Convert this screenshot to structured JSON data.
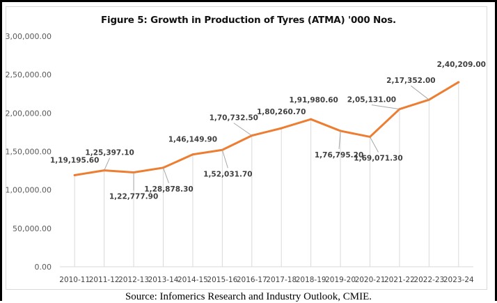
{
  "chart_data": {
    "type": "line",
    "title": "Figure 5: Growth in Production of Tyres (ATMA) '000 Nos.",
    "xlabel": "",
    "ylabel": "",
    "categories": [
      "2010-11",
      "2011-12",
      "2012-13",
      "2013-14",
      "2014-15",
      "2015-16",
      "2016-17",
      "2017-18",
      "2018-19",
      "2019-20",
      "2020-21",
      "2021-22",
      "2022-23",
      "2023-24"
    ],
    "series": [
      {
        "name": "Production of Tyres ('000 Nos.)",
        "color": "#ED7D31",
        "values": [
          119195.6,
          125397.1,
          122777.9,
          128878.3,
          146149.9,
          152031.7,
          170732.5,
          180260.7,
          191980.6,
          176795.2,
          169071.3,
          205131.0,
          217352.0,
          240209.0
        ],
        "labels": [
          "1,19,195.60",
          "1,25,397.10",
          "1,22,777.90",
          "1,28,878.30",
          "1,46,149.90",
          "1,52,031.70",
          "1,70,732.50",
          "1,80,260.70",
          "1,91,980.60",
          "1,76,795.20",
          "1,69,071.30",
          "2,05,131.00",
          "2,17,352.00",
          "2,40,209.00"
        ]
      }
    ],
    "ylim": [
      0,
      300000
    ],
    "yticks": [
      0,
      50000,
      100000,
      150000,
      200000,
      250000,
      300000
    ],
    "ytick_labels": [
      "0.00",
      "50,000.00",
      "1,00,000.00",
      "1,50,000.00",
      "2,00,000.00",
      "2,50,000.00",
      "3,00,000.00"
    ],
    "grid": "vertical drop lines",
    "legend": "none"
  },
  "source_note": "Source: Infomerics Research and Industry Outlook, CMIE."
}
